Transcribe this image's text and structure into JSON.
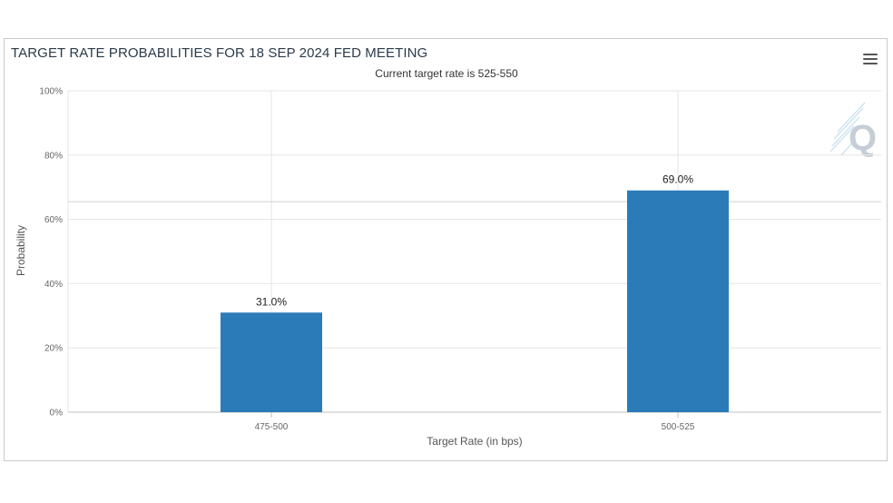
{
  "chart_data": {
    "type": "bar",
    "title": "TARGET RATE PROBABILITIES FOR 18 SEP 2024 FED MEETING",
    "subtitle": "Current target rate is 525-550",
    "xlabel": "Target Rate (in bps)",
    "ylabel": "Probability",
    "categories": [
      "475-500",
      "500-525"
    ],
    "values": [
      31.0,
      69.0
    ],
    "data_labels": [
      "31.0%",
      "69.0%"
    ],
    "yticks": [
      "0%",
      "20%",
      "40%",
      "60%",
      "80%",
      "100%"
    ],
    "ylim": [
      0,
      100
    ],
    "bar_color": "#2b7bb9",
    "grid": true,
    "legend": "none"
  },
  "toolbar": {
    "menu_icon": "hamburger-menu-icon"
  },
  "watermark": {
    "icon": "q-logo-icon",
    "letter": "Q"
  }
}
